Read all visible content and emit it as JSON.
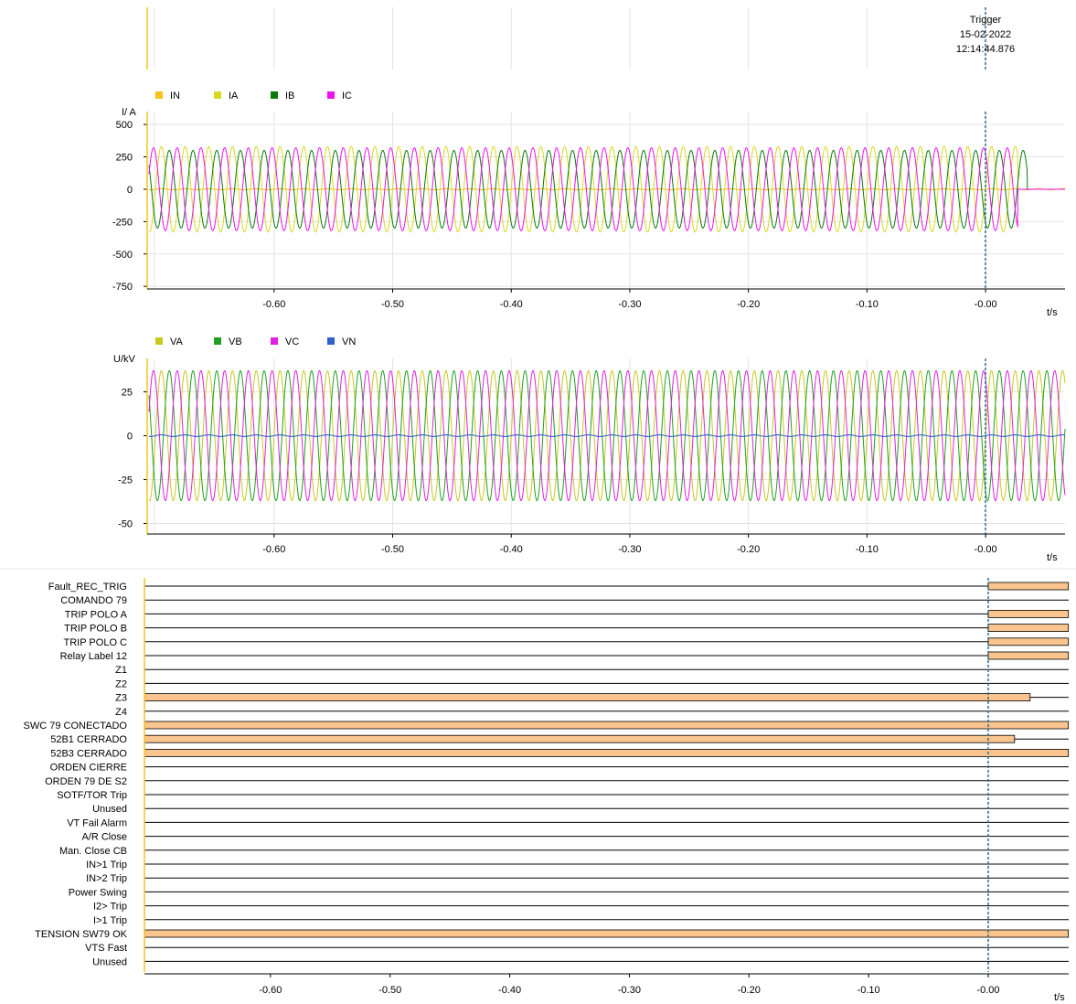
{
  "colors": {
    "IN": "#f5c31a",
    "IA": "#d8d820",
    "IB": "#0a7a0a",
    "IC": "#f010f0",
    "VA": "#c8c820",
    "VB": "#20a020",
    "VC": "#e020e0",
    "VN": "#3060d0",
    "digital_fill": "#f9c48e",
    "trigger": "#2a6f8f"
  },
  "trigger": {
    "title": "Trigger",
    "date": "15-02-2022",
    "time": "12:14:44.876"
  },
  "chart_data": [
    {
      "type": "line",
      "name": "current",
      "ylabel": "I/ A",
      "xlabel": "t/s",
      "xlim": [
        -0.707,
        0.067
      ],
      "ylim": [
        -770,
        600
      ],
      "yticks": [
        "500",
        "250",
        "0",
        "-250",
        "-500",
        "-750"
      ],
      "ytick_values": [
        500,
        250,
        0,
        -250,
        -500,
        -750
      ],
      "xticks": [
        "-0.60",
        "-0.50",
        "-0.40",
        "-0.30",
        "-0.20",
        "-0.10",
        "-0.00"
      ],
      "xtick_values": [
        -0.6,
        -0.5,
        -0.4,
        -0.3,
        -0.2,
        -0.1,
        0.0
      ],
      "frequency_hz": 50,
      "series": [
        {
          "name": "IN",
          "amplitude": 5,
          "phase_deg": 0,
          "end_t": 0.067
        },
        {
          "name": "IA",
          "amplitude": 330,
          "phase_deg": 0,
          "end_t": 0.027
        },
        {
          "name": "IB",
          "amplitude": 300,
          "phase_deg": -120,
          "end_t": 0.035
        },
        {
          "name": "IC",
          "amplitude": 320,
          "phase_deg": 120,
          "end_t": 0.027
        }
      ]
    },
    {
      "type": "line",
      "name": "voltage",
      "ylabel": "U/kV",
      "xlabel": "t/s",
      "xlim": [
        -0.707,
        0.067
      ],
      "ylim": [
        -56,
        44
      ],
      "yticks": [
        "25",
        "0",
        "-25",
        "-50"
      ],
      "ytick_values": [
        25,
        0,
        -25,
        -50
      ],
      "xticks": [
        "-0.60",
        "-0.50",
        "-0.40",
        "-0.30",
        "-0.20",
        "-0.10",
        "-0.00"
      ],
      "xtick_values": [
        -0.6,
        -0.5,
        -0.4,
        -0.3,
        -0.2,
        -0.1,
        0.0
      ],
      "frequency_hz": 50,
      "series": [
        {
          "name": "VA",
          "amplitude": 37,
          "phase_deg": 0,
          "end_t": 0.067
        },
        {
          "name": "VB",
          "amplitude": 37,
          "phase_deg": -120,
          "end_t": 0.067
        },
        {
          "name": "VC",
          "amplitude": 37,
          "phase_deg": 120,
          "end_t": 0.067
        },
        {
          "name": "VN",
          "amplitude": 0.5,
          "phase_deg": 0,
          "end_t": 0.067
        }
      ]
    },
    {
      "type": "bar",
      "name": "digital",
      "xlabel": "t/s",
      "xlim": [
        -0.707,
        0.067
      ],
      "xticks": [
        "-0.60",
        "-0.50",
        "-0.40",
        "-0.30",
        "-0.20",
        "-0.10",
        "-0.00"
      ],
      "xtick_values": [
        -0.6,
        -0.5,
        -0.4,
        -0.3,
        -0.2,
        -0.1,
        0.0
      ],
      "channels": [
        {
          "name": "Fault_REC_TRIG",
          "on": [
            [
              0.0,
              0.067
            ]
          ]
        },
        {
          "name": "COMANDO 79",
          "on": []
        },
        {
          "name": "TRIP POLO A",
          "on": [
            [
              0.0,
              0.067
            ]
          ]
        },
        {
          "name": "TRIP POLO B",
          "on": [
            [
              0.0,
              0.067
            ]
          ]
        },
        {
          "name": "TRIP POLO C",
          "on": [
            [
              0.0,
              0.067
            ]
          ]
        },
        {
          "name": "Relay Label 12",
          "on": [
            [
              0.0,
              0.067
            ]
          ]
        },
        {
          "name": "Z1",
          "on": []
        },
        {
          "name": "Z2",
          "on": []
        },
        {
          "name": "Z3",
          "on": [
            [
              -0.707,
              0.035
            ]
          ]
        },
        {
          "name": "Z4",
          "on": []
        },
        {
          "name": "SWC 79 CONECTADO",
          "on": [
            [
              -0.707,
              0.067
            ]
          ]
        },
        {
          "name": "52B1 CERRADO",
          "on": [
            [
              -0.707,
              0.022
            ]
          ]
        },
        {
          "name": "52B3 CERRADO",
          "on": [
            [
              -0.707,
              0.067
            ]
          ]
        },
        {
          "name": "ORDEN CIERRE",
          "on": []
        },
        {
          "name": "ORDEN 79 DE S2",
          "on": []
        },
        {
          "name": "SOTF/TOR Trip",
          "on": []
        },
        {
          "name": "Unused",
          "on": []
        },
        {
          "name": "VT Fail Alarm",
          "on": []
        },
        {
          "name": "A/R Close",
          "on": []
        },
        {
          "name": "Man. Close CB",
          "on": []
        },
        {
          "name": "IN>1 Trip",
          "on": []
        },
        {
          "name": "IN>2 Trip",
          "on": []
        },
        {
          "name": "Power Swing",
          "on": []
        },
        {
          "name": "I2> Trip",
          "on": []
        },
        {
          "name": "I>1 Trip",
          "on": []
        },
        {
          "name": "TENSION SW79 OK",
          "on": [
            [
              -0.707,
              0.067
            ]
          ]
        },
        {
          "name": "VTS Fast",
          "on": []
        },
        {
          "name": "Unused",
          "on": []
        }
      ]
    }
  ]
}
